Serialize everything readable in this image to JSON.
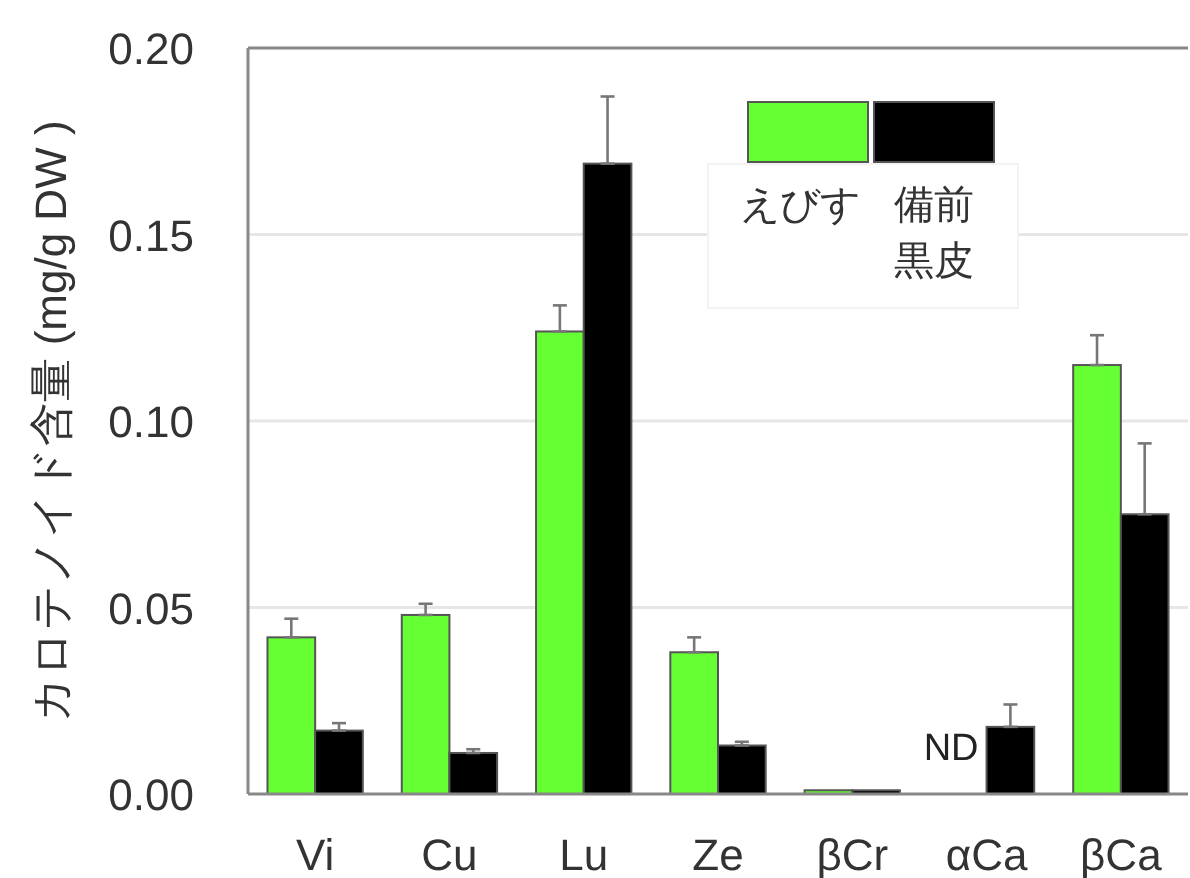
{
  "chart_data": {
    "type": "bar",
    "ylabel": "カロテノイド含量 (mg/g DW )",
    "categories": [
      "Vi",
      "Cu",
      "Lu",
      "Ze",
      "βCr",
      "αCa",
      "βCa"
    ],
    "series": [
      {
        "name": "えびす",
        "color": "#66ff33",
        "values": [
          0.042,
          0.048,
          0.124,
          0.038,
          0.001,
          null,
          0.115
        ],
        "errors": [
          [
            0.042,
            0.047
          ],
          [
            0.048,
            0.051
          ],
          [
            0.124,
            0.131
          ],
          [
            0.038,
            0.042
          ],
          null,
          null,
          [
            0.115,
            0.123
          ]
        ]
      },
      {
        "name": "備前黒皮",
        "color": "#000000",
        "values": [
          0.017,
          0.011,
          0.169,
          0.013,
          0.001,
          0.018,
          0.075
        ],
        "errors": [
          [
            0.017,
            0.019
          ],
          [
            0.011,
            0.012
          ],
          [
            0.169,
            0.187
          ],
          [
            0.013,
            0.014
          ],
          null,
          [
            0.018,
            0.024
          ],
          [
            0.075,
            0.094
          ]
        ]
      }
    ],
    "ylim": [
      0,
      0.2
    ],
    "yticks": [
      {
        "value": 0,
        "label": "0.00"
      },
      0.05,
      {
        "value": 0.1,
        "label": "0.10"
      },
      0.15,
      {
        "value": 0.2,
        "label": "0.20"
      }
    ],
    "grid": "y",
    "legend": "top right",
    "annotations": [
      {
        "text": "ND",
        "x": "αCa",
        "y": 0
      }
    ]
  }
}
